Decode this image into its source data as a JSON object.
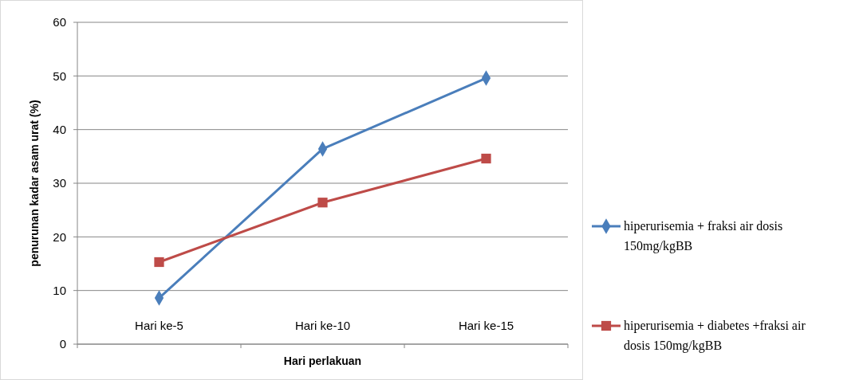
{
  "chart_data": {
    "type": "line",
    "xlabel": "Hari perlakuan",
    "ylabel": "penurunan kadar asam urat (%)",
    "categories": [
      "Hari ke-5",
      "Hari ke-10",
      "Hari ke-15"
    ],
    "series": [
      {
        "name": "hiperurisemia + fraksi air dosis 150mg/kgBB",
        "color": "#4a7ebb",
        "marker": "diamond",
        "values": [
          8.6,
          36.4,
          49.6
        ]
      },
      {
        "name": "hiperurisemia + diabetes +fraksi air dosis 150mg/kgBB",
        "color": "#be4b48",
        "marker": "square",
        "values": [
          15.3,
          26.4,
          34.6
        ]
      }
    ],
    "ylim": [
      0,
      60
    ],
    "yticks": [
      0,
      10,
      20,
      30,
      40,
      50,
      60
    ],
    "grid": "y",
    "legend": "right"
  }
}
